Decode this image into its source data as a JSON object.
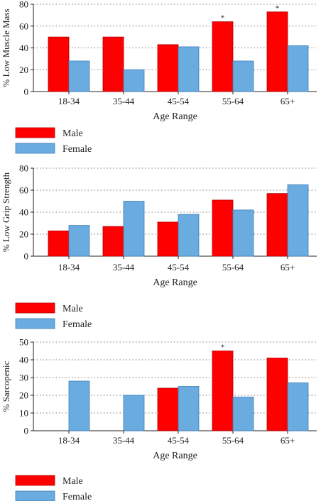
{
  "colors": {
    "male": "#ff0000",
    "female": "#6aabe0",
    "male_stroke": "#b30000",
    "female_stroke": "#3f7fb8",
    "grid": "#777777"
  },
  "chart_data": [
    {
      "type": "bar",
      "ylabel": "% Low Muscle Mass",
      "xlabel": "Age Range",
      "categories": [
        "18-34",
        "35-44",
        "45-54",
        "55-64",
        "65+"
      ],
      "ylim": [
        0,
        80
      ],
      "yticks": [
        0,
        20,
        40,
        60,
        80
      ],
      "grid": true,
      "legend_placement": "below",
      "series": [
        {
          "name": "Male",
          "values": [
            50,
            50,
            43,
            64,
            73
          ],
          "significance": [
            "",
            "",
            "",
            "*",
            "*"
          ]
        },
        {
          "name": "Female",
          "values": [
            28,
            20,
            41,
            28,
            42
          ],
          "significance": [
            "",
            "",
            "",
            "",
            ""
          ]
        }
      ]
    },
    {
      "type": "bar",
      "ylabel": "% Low Grip Strength",
      "xlabel": "Age Range",
      "categories": [
        "18-34",
        "35-44",
        "45-54",
        "55-64",
        "65+"
      ],
      "ylim": [
        0,
        80
      ],
      "yticks": [
        0,
        20,
        40,
        60,
        80
      ],
      "grid": true,
      "legend_placement": "below",
      "series": [
        {
          "name": "Male",
          "values": [
            23,
            27,
            31,
            51,
            57
          ],
          "significance": [
            "",
            "",
            "",
            "",
            ""
          ]
        },
        {
          "name": "Female",
          "values": [
            28,
            50,
            38,
            42,
            65
          ],
          "significance": [
            "",
            "",
            "",
            "",
            ""
          ]
        }
      ]
    },
    {
      "type": "bar",
      "ylabel": "% Sarcopenic",
      "xlabel": "Age Range",
      "categories": [
        "18-34",
        "35-44",
        "45-54",
        "55-64",
        "65+"
      ],
      "ylim": [
        0,
        50
      ],
      "yticks": [
        0,
        10,
        20,
        30,
        40,
        50
      ],
      "grid": true,
      "legend_placement": "below",
      "series": [
        {
          "name": "Male",
          "values": [
            0,
            0,
            24,
            45,
            41
          ],
          "significance": [
            "",
            "",
            "",
            "*",
            ""
          ]
        },
        {
          "name": "Female",
          "values": [
            28,
            20,
            25,
            19,
            27
          ],
          "significance": [
            "",
            "",
            "",
            "",
            ""
          ]
        }
      ]
    }
  ]
}
